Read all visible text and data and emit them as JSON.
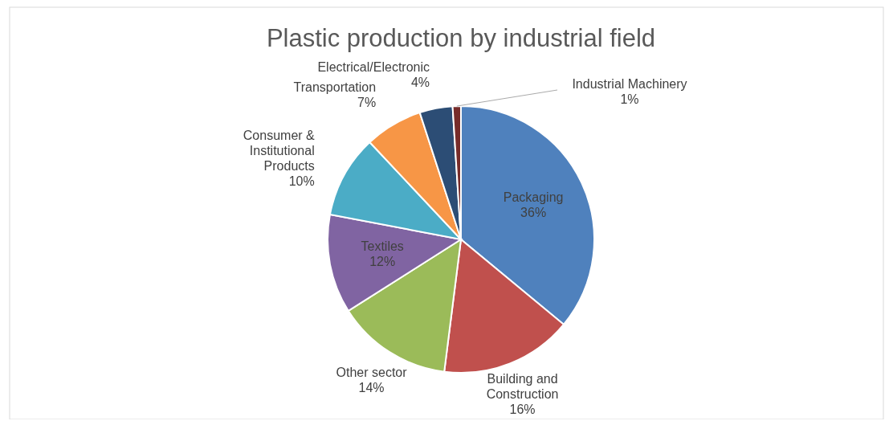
{
  "chart_data": {
    "type": "pie",
    "title": "Plastic production by industrial field",
    "categories": [
      "Packaging",
      "Building and Construction",
      "Other sector",
      "Textiles",
      "Consumer & Institutional Products",
      "Transportation",
      "Electrical/Electronic",
      "Industrial Machinery"
    ],
    "values": [
      36,
      16,
      14,
      12,
      10,
      7,
      4,
      1
    ],
    "value_labels": [
      "36%",
      "16%",
      "14%",
      "12%",
      "10%",
      "7%",
      "4%",
      "1%"
    ],
    "colors": [
      "#4f81bd",
      "#c0504d",
      "#9bbb59",
      "#8064a2",
      "#4bacc6",
      "#f79646",
      "#2c4d75",
      "#772c2a"
    ]
  }
}
